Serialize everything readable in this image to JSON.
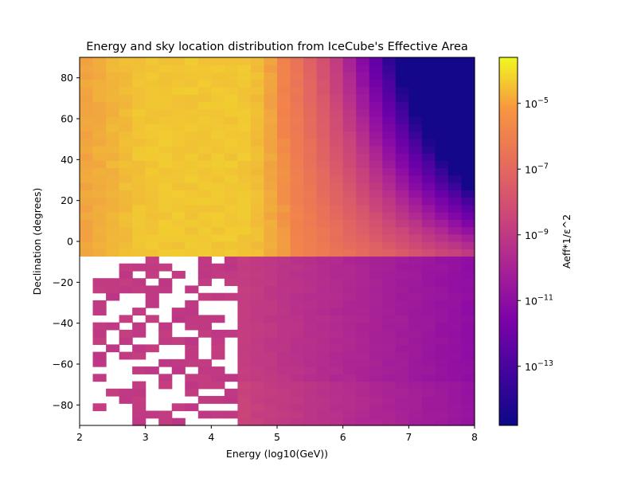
{
  "chart_data": {
    "type": "heatmap",
    "title": "Energy and sky location distribution from IceCube's Effective Area",
    "xlabel": "Energy (log10(GeV))",
    "ylabel": "Declination (degrees)",
    "colorbar_label": "Aeff*1/ε^2",
    "xlim": [
      2,
      8
    ],
    "ylim": [
      -90,
      90
    ],
    "x_ticks": [
      2,
      3,
      4,
      5,
      6,
      7,
      8
    ],
    "x_tick_labels": [
      "2",
      "3",
      "4",
      "5",
      "6",
      "7",
      "8"
    ],
    "y_ticks": [
      -80,
      -60,
      -40,
      -20,
      0,
      20,
      40,
      60,
      80
    ],
    "y_tick_labels": [
      "−80",
      "−60",
      "−40",
      "−20",
      "0",
      "20",
      "40",
      "60",
      "80"
    ],
    "colorbar": {
      "scale": "log",
      "colormap": "plasma",
      "range_log10": [
        -14.8,
        -3.6
      ],
      "ticks": [
        {
          "exp": -5,
          "base": "10",
          "sup": "−5"
        },
        {
          "exp": -7,
          "base": "10",
          "sup": "−7"
        },
        {
          "exp": -9,
          "base": "10",
          "sup": "−9"
        },
        {
          "exp": -11,
          "base": "10",
          "sup": "−11"
        },
        {
          "exp": -13,
          "base": "10",
          "sup": "−13"
        }
      ]
    },
    "grid": {
      "energy_bin_width_log10": 0.2,
      "declination_bin_width_deg": 3.6,
      "energy_min": 2.0,
      "energy_max": 8.0,
      "dec_min": -90,
      "dec_max": 90
    },
    "value_model_log10": {
      "north_plateau_peak": -4.2,
      "dark_corner_min": -14.6,
      "south_sparse_level": -8.4,
      "south_band_level": -8.2,
      "southern_high_energy_level": -10.4
    },
    "grid_on": false
  }
}
